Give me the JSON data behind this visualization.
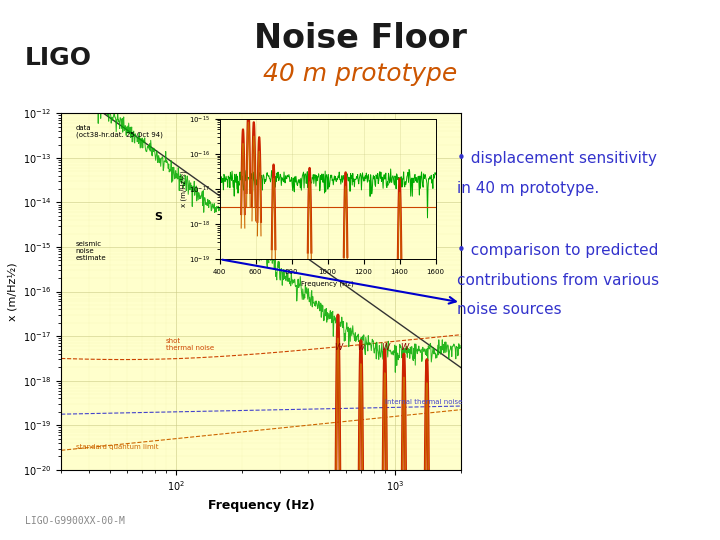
{
  "title_main": "Noise Floor",
  "title_sub": "40 m prototype",
  "title_main_color": "#1a1a1a",
  "title_sub_color": "#cc5500",
  "bg_color": "#ffffff",
  "header_line_color": "#cc0055",
  "ligo_text": "LIGO",
  "ligo_color": "#1a1a1a",
  "bullet1_line1": "• displacement sensitivity",
  "bullet1_line2": "in 40 m prototype.",
  "bullet2_line1": "• comparison to predicted",
  "bullet2_line2": "contributions from various",
  "bullet2_line3": "noise sources",
  "bullet_color": "#3333cc",
  "footer_text": "LIGO-G9900XX-00-M",
  "footer_color": "#888888",
  "plot_bg": "#ffffcc",
  "plot_x_label": "Frequency (Hz)",
  "plot_y_label": "x (m/Hz½)",
  "wave_color": "#bbbbbb"
}
